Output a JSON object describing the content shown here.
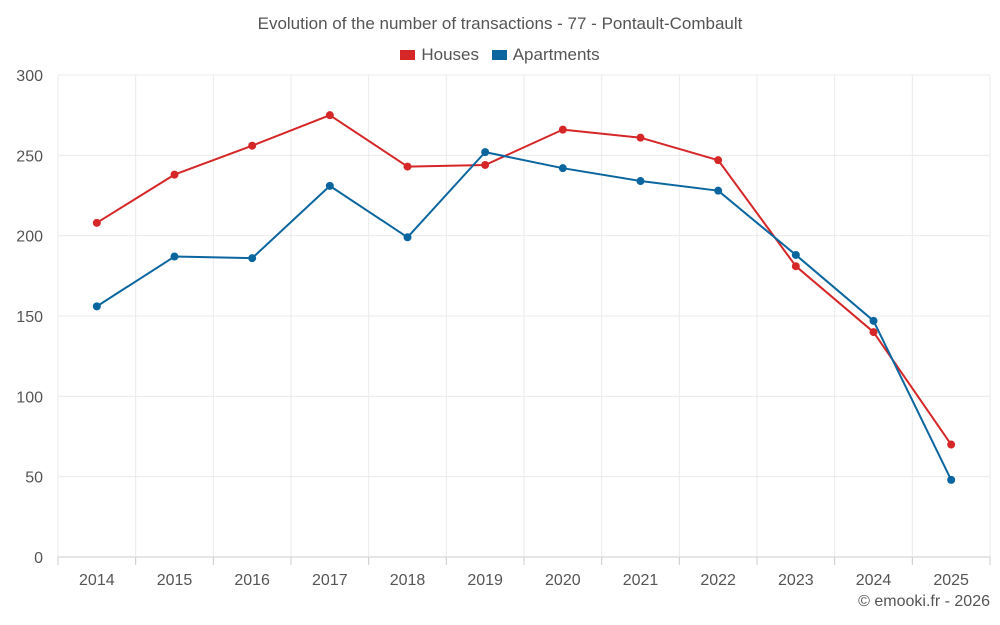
{
  "chart_data": {
    "type": "line",
    "title": "Evolution of the number of transactions - 77 - Pontault-Combault",
    "xlabel": "",
    "ylabel": "",
    "categories": [
      "2014",
      "2015",
      "2016",
      "2017",
      "2018",
      "2019",
      "2020",
      "2021",
      "2022",
      "2023",
      "2024",
      "2025"
    ],
    "ylim": [
      0,
      300
    ],
    "yticks": [
      0,
      50,
      100,
      150,
      200,
      250,
      300
    ],
    "grid": true,
    "legend_position": "top-center",
    "series": [
      {
        "name": "Houses",
        "color": "#d62728",
        "values": [
          208,
          238,
          256,
          275,
          243,
          244,
          266,
          261,
          247,
          181,
          140,
          70
        ]
      },
      {
        "name": "Apartments",
        "color": "#0b66a0",
        "values": [
          156,
          187,
          186,
          231,
          199,
          252,
          242,
          234,
          228,
          188,
          147,
          48
        ]
      }
    ]
  },
  "legend": {
    "houses_label": "Houses",
    "apartments_label": "Apartments",
    "houses_color": "#d62728",
    "apartments_color": "#0b66a0"
  },
  "footer": {
    "copyright": "© emooki.fr - 2026"
  }
}
